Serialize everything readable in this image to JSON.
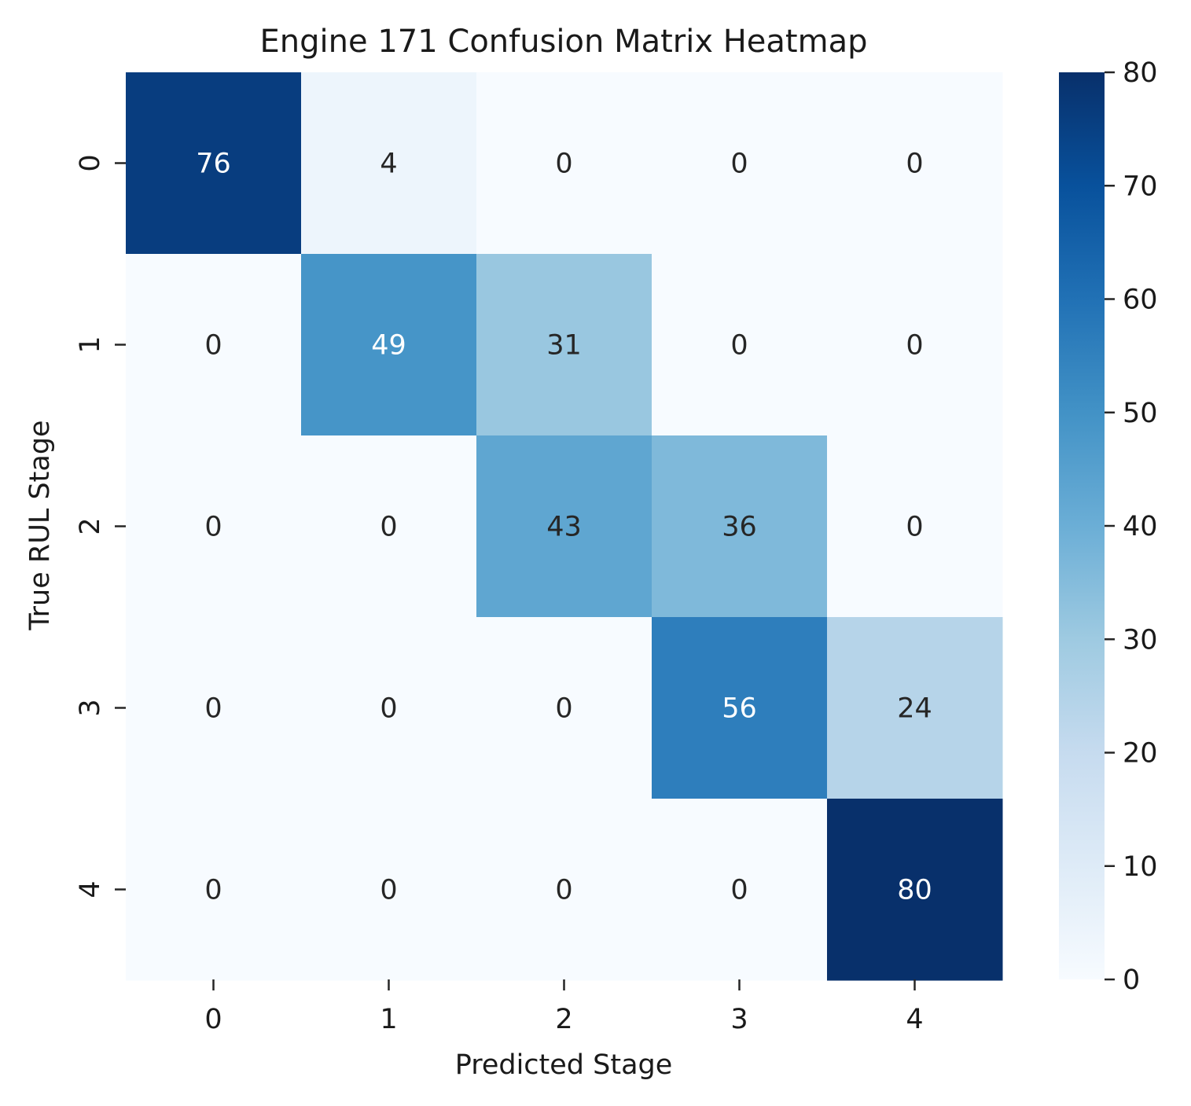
{
  "chart_data": {
    "type": "heatmap",
    "title": "Engine 171 Confusion Matrix Heatmap",
    "xlabel": "Predicted Stage",
    "ylabel": "True RUL Stage",
    "x_categories": [
      "0",
      "1",
      "2",
      "3",
      "4"
    ],
    "y_categories": [
      "0",
      "1",
      "2",
      "3",
      "4"
    ],
    "values": [
      [
        76,
        4,
        0,
        0,
        0
      ],
      [
        0,
        49,
        31,
        0,
        0
      ],
      [
        0,
        0,
        43,
        36,
        0
      ],
      [
        0,
        0,
        0,
        56,
        24
      ],
      [
        0,
        0,
        0,
        0,
        80
      ]
    ],
    "colormap": "Blues",
    "colorbar": {
      "range": [
        0,
        80
      ],
      "ticks": [
        0,
        10,
        20,
        30,
        40,
        50,
        60,
        70,
        80
      ]
    },
    "annotations": true
  }
}
